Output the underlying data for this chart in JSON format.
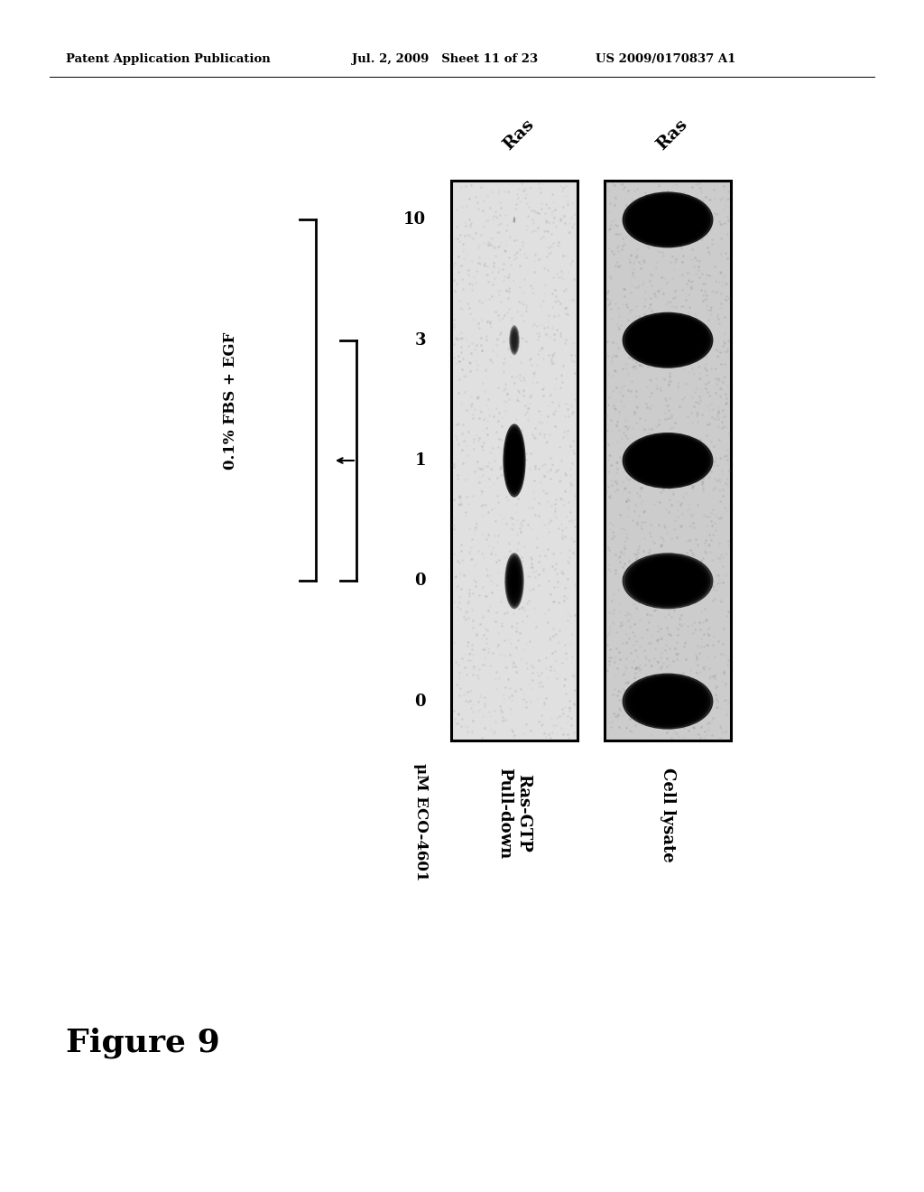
{
  "header_left": "Patent Application Publication",
  "header_mid": "Jul. 2, 2009   Sheet 11 of 23",
  "header_right": "US 2009/0170837 A1",
  "figure_label": "Figure 9",
  "panel1_label": "Ras-GTP\nPull-down",
  "panel2_label": "Cell lysate",
  "antibody_label": "Ras",
  "conc_label": "μM ECO-4601",
  "concentrations": [
    "10",
    "3",
    "1",
    "0",
    "0"
  ],
  "bracket_label": "0.1% FBS + EGF",
  "bg_color": "#ffffff",
  "panel1_bg": "#e0e0e0",
  "panel2_bg": "#cccccc",
  "panel1_band_intensities": [
    0.08,
    0.35,
    0.85,
    0.65,
    0.0
  ],
  "panel2_band_intensities": [
    0.95,
    0.95,
    0.95,
    0.85,
    0.9
  ],
  "fig_width": 10.24,
  "fig_height": 13.2
}
